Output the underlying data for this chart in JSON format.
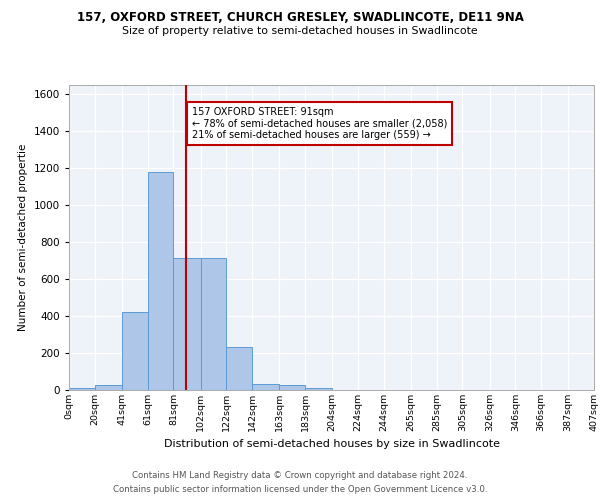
{
  "title": "157, OXFORD STREET, CHURCH GRESLEY, SWADLINCOTE, DE11 9NA",
  "subtitle": "Size of property relative to semi-detached houses in Swadlincote",
  "xlabel": "Distribution of semi-detached houses by size in Swadlincote",
  "ylabel": "Number of semi-detached propertie",
  "footer1": "Contains HM Land Registry data © Crown copyright and database right 2024.",
  "footer2": "Contains public sector information licensed under the Open Government Licence v3.0.",
  "property_sqm": 91,
  "pct_smaller": 78,
  "n_smaller": 2058,
  "pct_larger": 21,
  "n_larger": 559,
  "bar_color": "#aec6e8",
  "bar_edge_color": "#5b9bd5",
  "vline_color": "#c00000",
  "bg_color": "#eef2f9",
  "grid_color": "#ffffff",
  "bin_edges": [
    0,
    20,
    41,
    61,
    81,
    102,
    122,
    142,
    163,
    183,
    204,
    224,
    244,
    265,
    285,
    305,
    326,
    346,
    366,
    387,
    407
  ],
  "bin_labels": [
    "0sqm",
    "20sqm",
    "41sqm",
    "61sqm",
    "81sqm",
    "102sqm",
    "122sqm",
    "142sqm",
    "163sqm",
    "183sqm",
    "204sqm",
    "224sqm",
    "244sqm",
    "265sqm",
    "285sqm",
    "305sqm",
    "326sqm",
    "346sqm",
    "366sqm",
    "387sqm",
    "407sqm"
  ],
  "counts": [
    10,
    25,
    420,
    1180,
    715,
    715,
    230,
    35,
    28,
    13,
    0,
    0,
    0,
    0,
    0,
    0,
    0,
    0,
    0,
    0
  ],
  "ylim": [
    0,
    1650
  ],
  "yticks": [
    0,
    200,
    400,
    600,
    800,
    1000,
    1200,
    1400,
    1600
  ]
}
